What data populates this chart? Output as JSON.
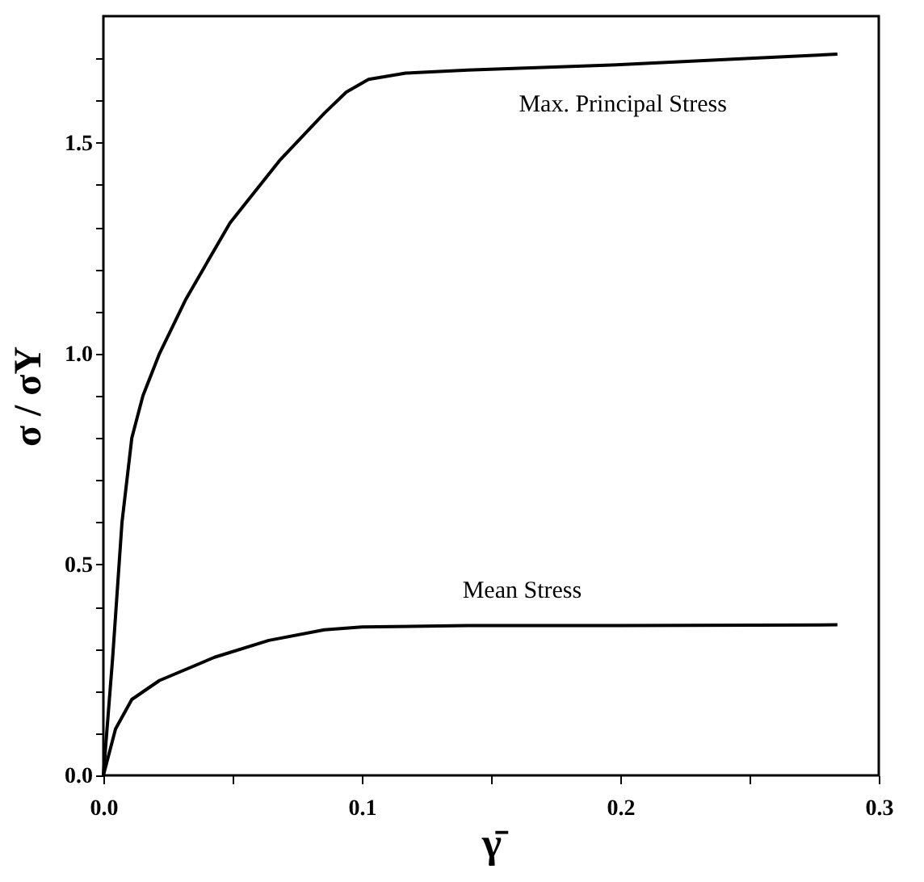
{
  "chart_data": {
    "type": "line",
    "xlabel": "γ̄",
    "ylabel": "σ / σY",
    "xlim": [
      0,
      0.3
    ],
    "ylim": [
      0,
      1.8
    ],
    "xticks": [
      {
        "value": 0,
        "label": "0.0"
      },
      {
        "value": 0.05,
        "label": null
      },
      0.1,
      {
        "value": 0.15,
        "label": null
      },
      0.2,
      {
        "value": 0.25,
        "label": null
      },
      0.3
    ],
    "yticks": [
      {
        "value": 0,
        "label": "0.0"
      },
      {
        "value": 0.1,
        "label": null
      },
      {
        "value": 0.2,
        "label": null
      },
      {
        "value": 0.3,
        "label": null
      },
      {
        "value": 0.4,
        "label": null
      },
      0.5,
      {
        "value": 0.6,
        "label": null
      },
      {
        "value": 0.7,
        "label": null
      },
      {
        "value": 0.8,
        "label": null
      },
      {
        "value": 0.9,
        "label": null
      },
      {
        "value": 1.0,
        "label": "1.0"
      },
      {
        "value": 1.1,
        "label": null
      },
      {
        "value": 1.2,
        "label": null
      },
      {
        "value": 1.3,
        "label": null
      },
      {
        "value": 1.4,
        "label": null
      },
      1.5,
      {
        "value": 1.6,
        "label": null
      },
      {
        "value": 1.7,
        "label": null
      }
    ],
    "grid": false,
    "marker": "none",
    "line_style": "solid",
    "series": [
      {
        "color": "#000000",
        "x": [
          0,
          0.0036,
          0.0072,
          0.011,
          0.0153,
          0.0217,
          0.032,
          0.049,
          0.0685,
          0.0855,
          0.094,
          0.1026,
          0.117,
          0.141,
          0.2,
          0.25,
          0.284
        ],
        "values": [
          0,
          0.28,
          0.6,
          0.8,
          0.9,
          1.0,
          1.13,
          1.31,
          1.46,
          1.57,
          1.62,
          1.65,
          1.665,
          1.672,
          1.685,
          1.7,
          1.71
        ]
      },
      {
        "color": "#000000",
        "x": [
          0,
          0.0047,
          0.011,
          0.0217,
          0.043,
          0.064,
          0.0855,
          0.1,
          0.141,
          0.2,
          0.284
        ],
        "values": [
          0,
          0.11,
          0.18,
          0.225,
          0.28,
          0.32,
          0.345,
          0.352,
          0.355,
          0.355,
          0.357
        ]
      }
    ],
    "annotations": [
      "Max. Principal Stress",
      "Mean Stress"
    ]
  }
}
